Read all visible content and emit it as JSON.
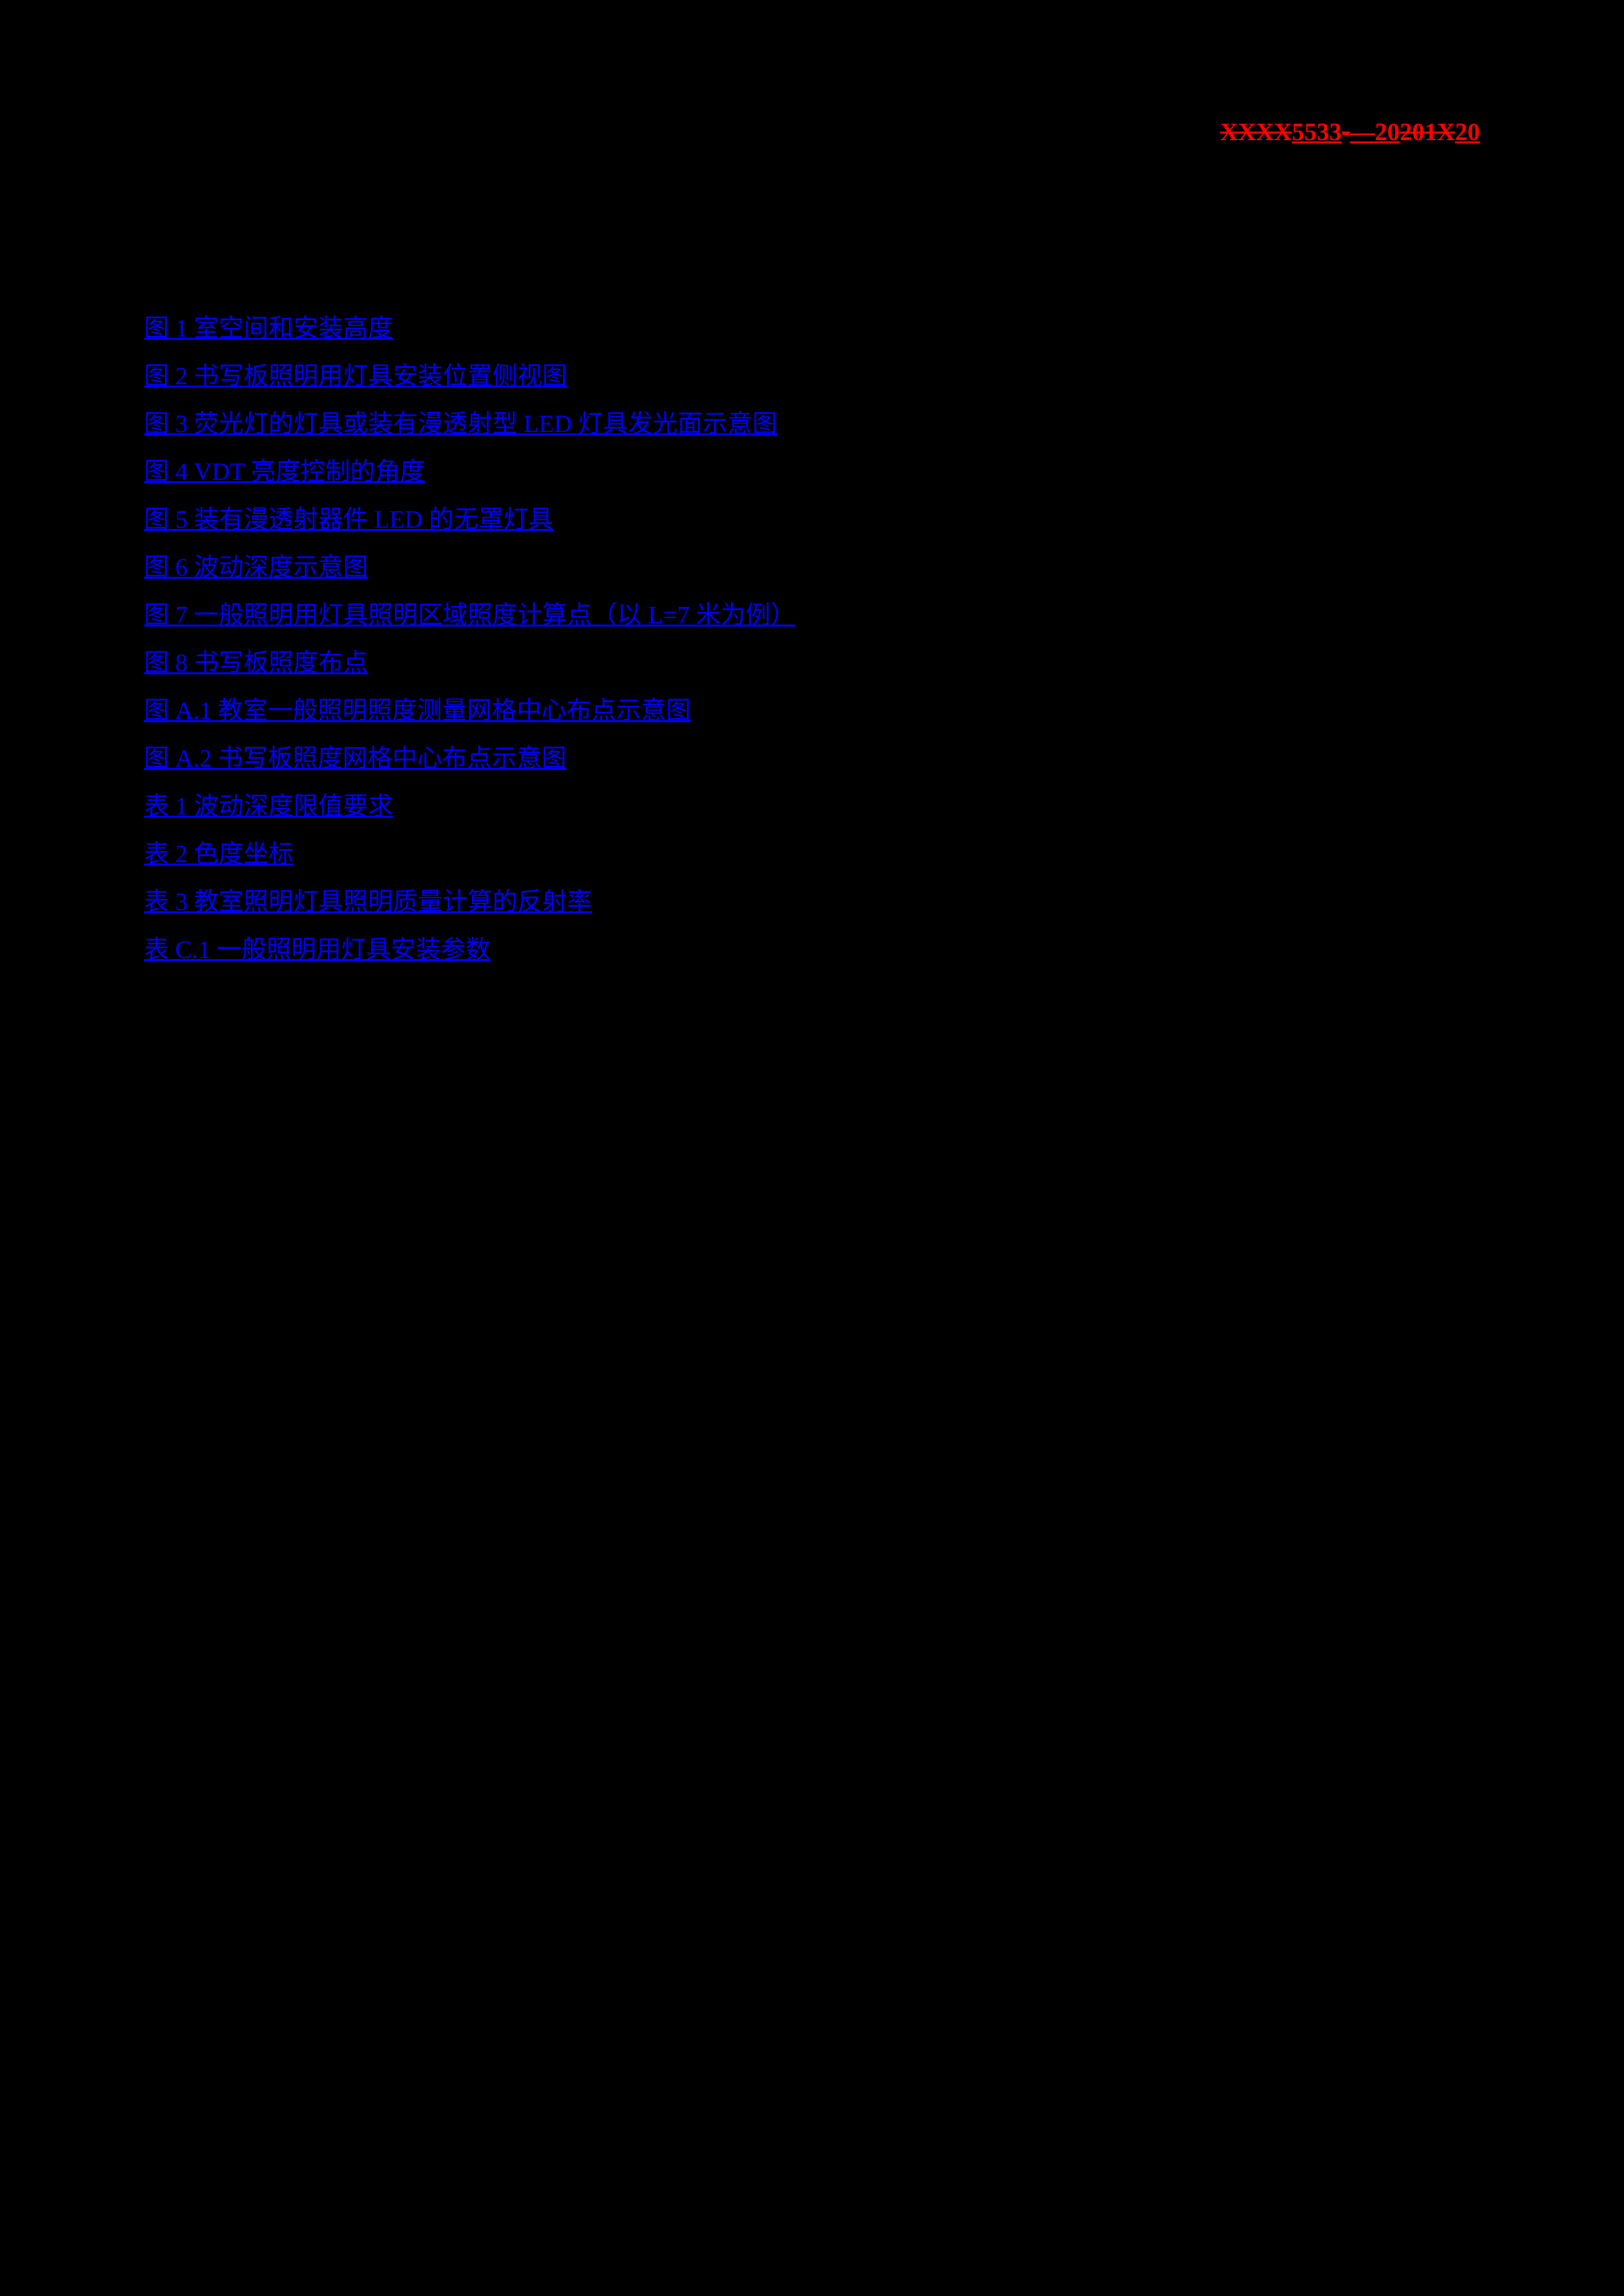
{
  "header": {
    "text_parts": [
      {
        "text": "XXXX",
        "style": "strike"
      },
      {
        "text": "5533",
        "style": "underline"
      },
      {
        "text": "-",
        "style": "strike"
      },
      {
        "text": "—",
        "style": "underline"
      },
      {
        "text": "20",
        "style": "underline"
      },
      {
        "text": "201",
        "style": "strike"
      },
      {
        "text": "X",
        "style": "strike"
      },
      {
        "text": "20",
        "style": "underline"
      }
    ]
  },
  "toc": {
    "items": [
      {
        "label": "图 1  室空间和安装高度"
      },
      {
        "label": "图 2  书写板照明用灯具安装位置侧视图"
      },
      {
        "label": "图 3 荧光灯的灯具或装有漫透射型 LED 灯具发光面示意图"
      },
      {
        "label": "图 4 VDT 亮度控制的角度"
      },
      {
        "label": "图 5 装有漫透射器件 LED 的无罩灯具"
      },
      {
        "label": "图 6   波动深度示意图"
      },
      {
        "label": "图 7  一般照明用灯具照明区域照度计算点（以 L=7 米为例）"
      },
      {
        "label": "图 8  书写板照度布点"
      },
      {
        "label": "图 A.1  教室一般照明照度测量网格中心布点示意图"
      },
      {
        "label": "图 A.2  书写板照度网格中心布点示意图"
      },
      {
        "label": "表 1  波动深度限值要求"
      },
      {
        "label": "表 2  色度坐标"
      },
      {
        "label": "表 3  教室照明灯具照明质量计算的反射率"
      },
      {
        "label": "表 C.1  一般照明用灯具安装参数"
      }
    ]
  },
  "colors": {
    "background": "#000000",
    "link": "#0000ff",
    "header": "#ff0000"
  }
}
